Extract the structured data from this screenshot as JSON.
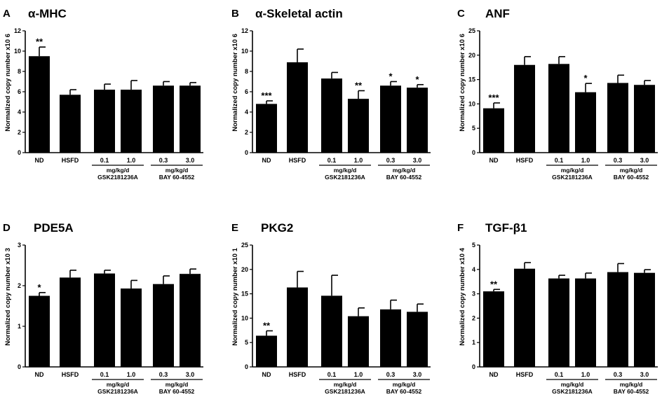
{
  "chart_data": [
    {
      "type": "bar",
      "panel": "A",
      "title": "α-MHC",
      "ylabel": "Normalized copy number",
      "yexp": "x10 6",
      "ylim": [
        0,
        12
      ],
      "yticks": [
        0,
        2,
        4,
        6,
        8,
        10,
        12
      ],
      "categories": [
        "ND",
        "HSFD",
        "0.1",
        "1.0",
        "0.3",
        "3.0"
      ],
      "values": [
        9.5,
        5.7,
        6.2,
        6.2,
        6.6,
        6.6
      ],
      "errors": [
        0.9,
        0.5,
        0.55,
        0.9,
        0.4,
        0.3
      ],
      "significance": [
        "**",
        "",
        "",
        "",
        "",
        ""
      ],
      "groups": [
        {
          "unit": "mg/kg/d",
          "name": "GSK2181236A"
        },
        {
          "unit": "mg/kg/d",
          "name": "BAY 60-4552"
        }
      ]
    },
    {
      "type": "bar",
      "panel": "B",
      "title": "α-Skeletal actin",
      "ylabel": "Normalized copy number",
      "yexp": "x10 6",
      "ylim": [
        0,
        12
      ],
      "yticks": [
        0,
        2,
        4,
        6,
        8,
        10,
        12
      ],
      "categories": [
        "ND",
        "HSFD",
        "0.1",
        "1.0",
        "0.3",
        "3.0"
      ],
      "values": [
        4.8,
        8.9,
        7.3,
        5.3,
        6.6,
        6.4
      ],
      "errors": [
        0.3,
        1.3,
        0.6,
        0.8,
        0.4,
        0.3
      ],
      "significance": [
        "***",
        "",
        "",
        "**",
        "*",
        "*"
      ],
      "groups": [
        {
          "unit": "mg/kg/d",
          "name": "GSK2181236A"
        },
        {
          "unit": "mg/kg/d",
          "name": "BAY 60-4552"
        }
      ]
    },
    {
      "type": "bar",
      "panel": "C",
      "title": "ANF",
      "ylabel": "Normalized copy number",
      "yexp": "x10 6",
      "ylim": [
        0,
        25
      ],
      "yticks": [
        0,
        5,
        10,
        15,
        20,
        25
      ],
      "categories": [
        "ND",
        "HSFD",
        "0.1",
        "1.0",
        "0.3",
        "3.0"
      ],
      "values": [
        9.1,
        18.0,
        18.2,
        12.4,
        14.3,
        13.9
      ],
      "errors": [
        1.1,
        1.7,
        1.5,
        1.8,
        1.6,
        0.9
      ],
      "significance": [
        "***",
        "",
        "",
        "*",
        "",
        ""
      ],
      "groups": [
        {
          "unit": "mg/kg/d",
          "name": "GSK2181236A"
        },
        {
          "unit": "mg/kg/d",
          "name": "BAY 60-4552"
        }
      ]
    },
    {
      "type": "bar",
      "panel": "D",
      "title": "PDE5A",
      "ylabel": "Normalized copy number",
      "yexp": "x10 3",
      "ylim": [
        0,
        3
      ],
      "yticks": [
        0,
        1,
        2,
        3
      ],
      "categories": [
        "ND",
        "HSFD",
        "0.1",
        "1.0",
        "0.3",
        "3.0"
      ],
      "values": [
        1.75,
        2.2,
        2.3,
        1.93,
        2.04,
        2.29
      ],
      "errors": [
        0.08,
        0.18,
        0.08,
        0.2,
        0.2,
        0.12
      ],
      "significance": [
        "*",
        "",
        "",
        "",
        "",
        ""
      ],
      "groups": [
        {
          "unit": "mg/kg/d",
          "name": "GSK2181236A"
        },
        {
          "unit": "mg/kg/d",
          "name": "BAY 60-4552"
        }
      ]
    },
    {
      "type": "bar",
      "panel": "E",
      "title": "PKG2",
      "ylabel": "Normalized copy number",
      "yexp": "x10 1",
      "ylim": [
        0,
        25
      ],
      "yticks": [
        0,
        5,
        10,
        15,
        20,
        25
      ],
      "categories": [
        "ND",
        "HSFD",
        "0.1",
        "1.0",
        "0.3",
        "3.0"
      ],
      "values": [
        6.4,
        16.3,
        14.6,
        10.4,
        11.8,
        11.3
      ],
      "errors": [
        1.0,
        3.3,
        4.2,
        1.7,
        1.9,
        1.6
      ],
      "significance": [
        "**",
        "",
        "",
        "",
        "",
        ""
      ],
      "groups": [
        {
          "unit": "mg/kg/d",
          "name": "GSK2181236A"
        },
        {
          "unit": "mg/kg/d",
          "name": "BAY 60-4552"
        }
      ]
    },
    {
      "type": "bar",
      "panel": "F",
      "title": "TGF-β1",
      "ylabel": "Normalized copy number",
      "yexp": "x10 4",
      "ylim": [
        0,
        5
      ],
      "yticks": [
        0,
        1,
        2,
        3,
        4,
        5
      ],
      "categories": [
        "ND",
        "HSFD",
        "0.1",
        "1.0",
        "0.3",
        "3.0"
      ],
      "values": [
        3.1,
        4.03,
        3.63,
        3.63,
        3.89,
        3.86
      ],
      "errors": [
        0.08,
        0.25,
        0.13,
        0.22,
        0.35,
        0.13
      ],
      "significance": [
        "**",
        "",
        "",
        "",
        "",
        ""
      ],
      "groups": [
        {
          "unit": "mg/kg/d",
          "name": "GSK2181236A"
        },
        {
          "unit": "mg/kg/d",
          "name": "BAY 60-4552"
        }
      ]
    }
  ]
}
